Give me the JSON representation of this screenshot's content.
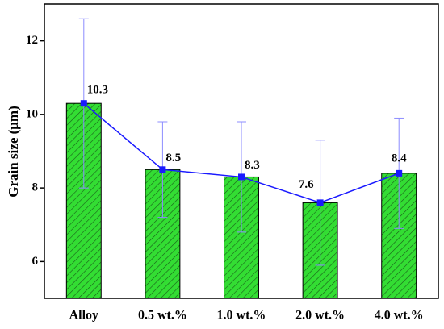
{
  "chart_data": {
    "type": "bar",
    "y_label": "Grain size (μm)",
    "categories": [
      "Alloy",
      "0.5 wt.%",
      "1.0 wt.%",
      "2.0 wt.%",
      "4.0 wt.%"
    ],
    "values": [
      10.3,
      8.5,
      8.3,
      7.6,
      8.4
    ],
    "errors": [
      2.3,
      1.3,
      1.5,
      1.7,
      1.5
    ],
    "color": "#33dd33",
    "line_color": "#1a1aff",
    "error_color": "#8c8cff",
    "ylim": [
      5,
      13
    ],
    "yticks": [
      6,
      8,
      10,
      12
    ]
  }
}
